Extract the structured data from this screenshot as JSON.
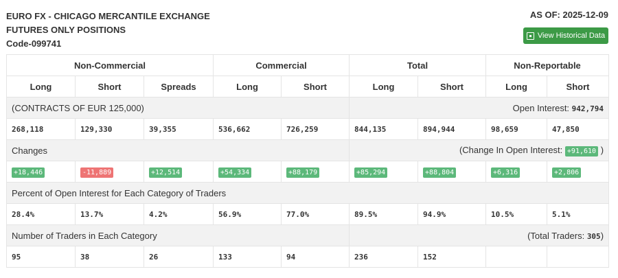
{
  "header": {
    "line1": "EURO FX - CHICAGO MERCANTILE EXCHANGE",
    "line2": "FUTURES ONLY POSITIONS",
    "code": "Code-099741",
    "as_of": "AS OF: 2025-12-09",
    "button": "View Historical Data",
    "button_icon": "calendar-icon"
  },
  "groups": [
    "Non-Commercial",
    "Commercial",
    "Total",
    "Non-Reportable"
  ],
  "columns": [
    "Long",
    "Short",
    "Spreads",
    "Long",
    "Short",
    "Long",
    "Short",
    "Long",
    "Short"
  ],
  "contracts": {
    "label": "(CONTRACTS OF EUR 125,000)",
    "oi_label": "Open Interest:",
    "oi_value": "942,794",
    "values": [
      "268,118",
      "129,330",
      "39,355",
      "536,662",
      "726,259",
      "844,135",
      "894,944",
      "98,659",
      "47,850"
    ]
  },
  "changes": {
    "label": "Changes",
    "oi_label": "(Change In Open Interest:",
    "oi_value": "+91,610",
    "oi_close": ")",
    "values": [
      "+18,446",
      "-11,889",
      "+12,514",
      "+54,334",
      "+88,179",
      "+85,294",
      "+88,804",
      "+6,316",
      "+2,806"
    ]
  },
  "percent": {
    "label": "Percent of Open Interest for Each Category of Traders",
    "values": [
      "28.4%",
      "13.7%",
      "4.2%",
      "56.9%",
      "77.0%",
      "89.5%",
      "94.9%",
      "10.5%",
      "5.1%"
    ]
  },
  "traders": {
    "label": "Number of Traders in Each Category",
    "total_label": "(Total Traders:",
    "total_value": "305",
    "total_close": ")",
    "values": [
      "95",
      "38",
      "26",
      "133",
      "94",
      "236",
      "152",
      "",
      ""
    ]
  },
  "colors": {
    "positive": "#5cb87a",
    "negative": "#ee7474",
    "button": "#3c9a46"
  }
}
